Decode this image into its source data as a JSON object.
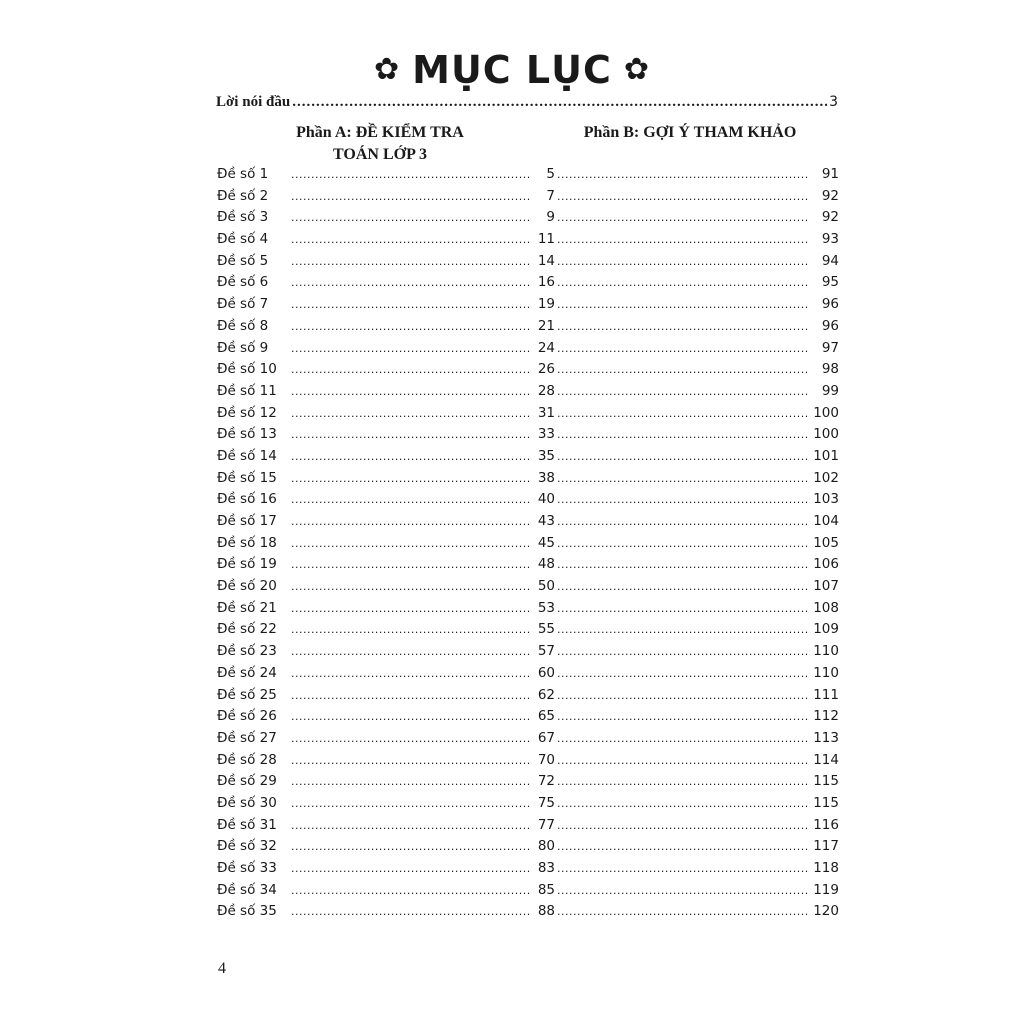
{
  "title": {
    "text": "MỤC LỤC",
    "ornament_icon": "flower-icon",
    "ornament_glyph": "✿"
  },
  "intro": {
    "label": "Lời nói đầu",
    "page": "3"
  },
  "part_a": {
    "line1": "Phần A: ĐỀ KIỂM TRA",
    "line2": "TOÁN LỚP 3"
  },
  "part_b": {
    "line1": "Phần B: GỢI Ý THAM KHẢO"
  },
  "entries": [
    {
      "label": "Đề số 1",
      "a": "5",
      "b": "91"
    },
    {
      "label": "Đề số 2",
      "a": "7",
      "b": "92"
    },
    {
      "label": "Đề số 3",
      "a": "9",
      "b": "92"
    },
    {
      "label": "Đề số 4",
      "a": "11",
      "b": "93"
    },
    {
      "label": "Đề số 5",
      "a": "14",
      "b": "94"
    },
    {
      "label": "Đề số 6",
      "a": "16",
      "b": "95"
    },
    {
      "label": "Đề số 7",
      "a": "19",
      "b": "96"
    },
    {
      "label": "Đề số 8",
      "a": "21",
      "b": "96"
    },
    {
      "label": "Đề số 9",
      "a": "24",
      "b": "97"
    },
    {
      "label": "Đề số 10",
      "a": "26",
      "b": "98"
    },
    {
      "label": "Đề số 11",
      "a": "28",
      "b": "99"
    },
    {
      "label": "Đề số 12",
      "a": "31",
      "b": "100"
    },
    {
      "label": "Đề số 13",
      "a": "33",
      "b": "100"
    },
    {
      "label": "Đề số 14",
      "a": "35",
      "b": "101"
    },
    {
      "label": "Đề số 15",
      "a": "38",
      "b": "102"
    },
    {
      "label": "Đề số 16",
      "a": "40",
      "b": "103"
    },
    {
      "label": "Đề số 17",
      "a": "43",
      "b": "104"
    },
    {
      "label": "Đề số 18",
      "a": "45",
      "b": "105"
    },
    {
      "label": "Đề số 19",
      "a": "48",
      "b": "106"
    },
    {
      "label": "Đề số 20",
      "a": "50",
      "b": "107"
    },
    {
      "label": "Đề số 21",
      "a": "53",
      "b": "108"
    },
    {
      "label": "Đề số 22",
      "a": "55",
      "b": "109"
    },
    {
      "label": "Đề số 23",
      "a": "57",
      "b": "110"
    },
    {
      "label": "Đề số 24",
      "a": "60",
      "b": "110"
    },
    {
      "label": "Đề số 25",
      "a": "62",
      "b": "111"
    },
    {
      "label": "Đề số 26",
      "a": "65",
      "b": "112"
    },
    {
      "label": "Đề số 27",
      "a": "67",
      "b": "113"
    },
    {
      "label": "Đề số 28",
      "a": "70",
      "b": "114"
    },
    {
      "label": "Đề số 29",
      "a": "72",
      "b": "115"
    },
    {
      "label": "Đề số 30",
      "a": "75",
      "b": "115"
    },
    {
      "label": "Đề số 31",
      "a": "77",
      "b": "116"
    },
    {
      "label": "Đề số 32",
      "a": "80",
      "b": "117"
    },
    {
      "label": "Đề số 33",
      "a": "83",
      "b": "118"
    },
    {
      "label": "Đề số 34",
      "a": "85",
      "b": "119"
    },
    {
      "label": "Đề số 35",
      "a": "88",
      "b": "120"
    }
  ],
  "page_number": "4"
}
